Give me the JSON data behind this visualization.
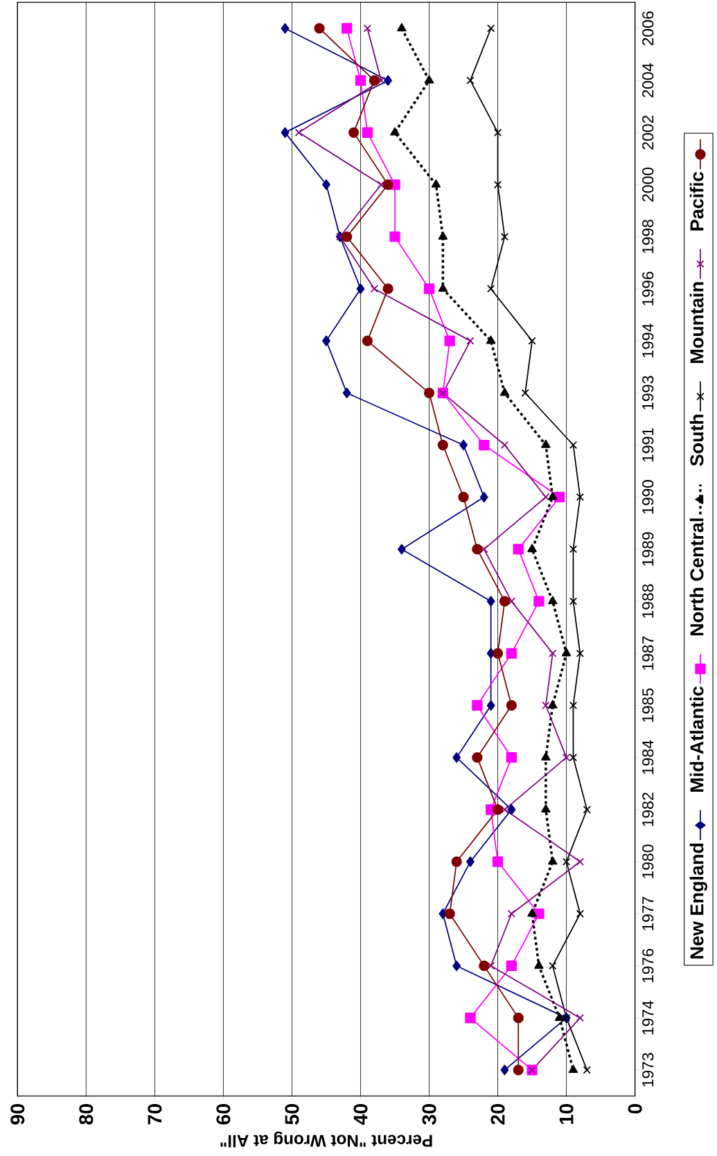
{
  "chart_data": {
    "type": "line",
    "orientation": "horizontal",
    "xlabel": "Percent \"Not Wrong at All\"",
    "categories": [
      "2006",
      "2004",
      "2002",
      "2000",
      "1998",
      "1996",
      "1994",
      "1993",
      "1991",
      "1990",
      "1989",
      "1988",
      "1987",
      "1985",
      "1984",
      "1982",
      "1980",
      "1977",
      "1976",
      "1974",
      "1973"
    ],
    "xlim": [
      90,
      0
    ],
    "xticks": [
      90,
      80,
      70,
      60,
      50,
      40,
      30,
      20,
      10,
      0
    ],
    "grid": "x",
    "legend": "right",
    "series": [
      {
        "name": "New England",
        "color": "#000080",
        "marker": "diamond",
        "line_style": "solid",
        "values": [
          51,
          36,
          51,
          45,
          43,
          40,
          45,
          42,
          25,
          22,
          34,
          21,
          21,
          21,
          26,
          18,
          24,
          28,
          26,
          10,
          19
        ]
      },
      {
        "name": "Mid-Atlantic",
        "color": "#ff00ff",
        "marker": "square",
        "line_style": "solid",
        "values": [
          42,
          40,
          39,
          35,
          35,
          30,
          27,
          28,
          22,
          11,
          17,
          14,
          18,
          23,
          18,
          21,
          20,
          14,
          18,
          24,
          15
        ]
      },
      {
        "name": "North Central",
        "color": "#000000",
        "marker": "triangle",
        "line_style": "dashed",
        "values": [
          34,
          30,
          35,
          29,
          28,
          28,
          21,
          19,
          13,
          12,
          15,
          12,
          10,
          12,
          13,
          13,
          12,
          15,
          14,
          11,
          9
        ]
      },
      {
        "name": "South",
        "color": "#000000",
        "marker": "cross",
        "line_style": "solid",
        "values": [
          21,
          24,
          20,
          20,
          19,
          21,
          15,
          16,
          9,
          8,
          9,
          9,
          8,
          9,
          9,
          7,
          10,
          8,
          12,
          10,
          7
        ]
      },
      {
        "name": "Mountain",
        "color": "#800080",
        "marker": "cross",
        "line_style": "solid",
        "values": [
          39,
          37,
          49,
          37,
          43,
          38,
          24,
          28,
          19,
          13,
          22,
          18,
          12,
          13,
          10,
          19,
          8,
          18,
          21,
          8,
          15
        ]
      },
      {
        "name": "Pacific",
        "color": "#800000",
        "marker": "circle",
        "line_style": "solid",
        "values": [
          46,
          38,
          41,
          36,
          42,
          36,
          39,
          30,
          28,
          25,
          23,
          19,
          20,
          18,
          23,
          20,
          26,
          27,
          22,
          17,
          17
        ]
      }
    ]
  }
}
